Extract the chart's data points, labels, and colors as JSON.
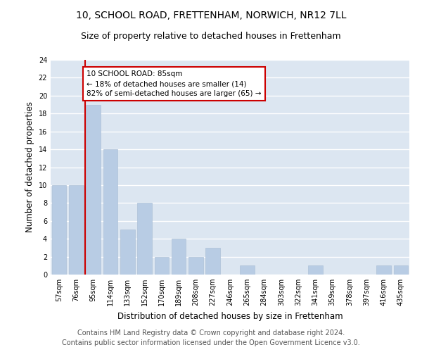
{
  "title": "10, SCHOOL ROAD, FRETTENHAM, NORWICH, NR12 7LL",
  "subtitle": "Size of property relative to detached houses in Frettenham",
  "xlabel": "Distribution of detached houses by size in Frettenham",
  "ylabel": "Number of detached properties",
  "categories": [
    "57sqm",
    "76sqm",
    "95sqm",
    "114sqm",
    "133sqm",
    "152sqm",
    "170sqm",
    "189sqm",
    "208sqm",
    "227sqm",
    "246sqm",
    "265sqm",
    "284sqm",
    "303sqm",
    "322sqm",
    "341sqm",
    "359sqm",
    "378sqm",
    "397sqm",
    "416sqm",
    "435sqm"
  ],
  "values": [
    10,
    10,
    19,
    14,
    5,
    8,
    2,
    4,
    2,
    3,
    0,
    1,
    0,
    0,
    0,
    1,
    0,
    0,
    0,
    1,
    1
  ],
  "bar_color": "#b8cce4",
  "bar_edge_color": "#aec2d8",
  "property_line_x": 1.5,
  "property_line_color": "#cc0000",
  "annotation_text": "10 SCHOOL ROAD: 85sqm\n← 18% of detached houses are smaller (14)\n82% of semi-detached houses are larger (65) →",
  "annotation_box_color": "#cc0000",
  "ylim": [
    0,
    24
  ],
  "yticks": [
    0,
    2,
    4,
    6,
    8,
    10,
    12,
    14,
    16,
    18,
    20,
    22,
    24
  ],
  "footer1": "Contains HM Land Registry data © Crown copyright and database right 2024.",
  "footer2": "Contains public sector information licensed under the Open Government Licence v3.0.",
  "bg_color": "#dce6f1",
  "title_fontsize": 10,
  "subtitle_fontsize": 9,
  "label_fontsize": 8.5,
  "tick_fontsize": 7,
  "footer_fontsize": 7,
  "annotation_fontsize": 7.5
}
